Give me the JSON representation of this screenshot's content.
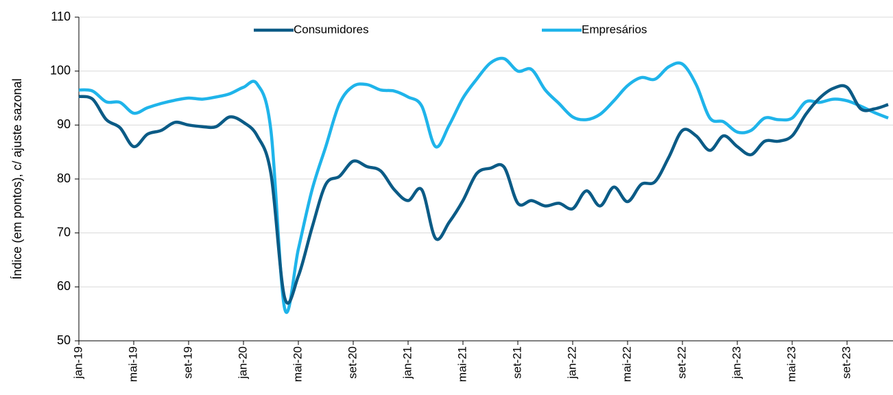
{
  "chart_data": {
    "type": "line",
    "y_label": "Índice (em pontos), c/ ajuste sazonal",
    "categories": [
      "jan-19",
      null,
      null,
      null,
      "mai-19",
      null,
      null,
      null,
      "set-19",
      null,
      null,
      null,
      "jan-20",
      null,
      null,
      null,
      "mai-20",
      null,
      null,
      null,
      "set-20",
      null,
      null,
      null,
      "jan-21",
      null,
      null,
      null,
      "mai-21",
      null,
      null,
      null,
      "set-21",
      null,
      null,
      null,
      "jan-22",
      null,
      null,
      null,
      "mai-22",
      null,
      null,
      null,
      "set-22",
      null,
      null,
      null,
      "jan-23",
      null,
      null,
      null,
      "mai-23",
      null,
      null,
      null,
      "set-23",
      null,
      null,
      null
    ],
    "series": [
      {
        "name": "Consumidores",
        "color": "#0b5b86",
        "values": [
          95.3,
          94.8,
          91,
          89.5,
          86,
          88.3,
          89,
          90.5,
          90,
          89.7,
          89.7,
          91.5,
          90.5,
          88,
          81,
          58,
          62,
          71,
          79,
          80.5,
          83.3,
          82.3,
          81.5,
          78,
          76,
          78,
          69,
          72,
          76,
          81,
          82,
          82.2,
          75.5,
          76,
          75,
          75.5,
          74.5,
          77.8,
          75,
          78.5,
          75.8,
          79,
          79.5,
          84,
          89,
          88,
          85.3,
          88,
          86,
          84.5,
          87,
          87,
          88,
          92,
          95,
          96.8,
          97,
          93,
          93,
          93.8
        ]
      },
      {
        "name": "Empresários",
        "color": "#1fb4ea",
        "values": [
          96.5,
          96.3,
          94.3,
          94.2,
          92.2,
          93.2,
          94,
          94.6,
          95,
          94.8,
          95.2,
          95.8,
          97,
          97.6,
          89,
          56,
          67,
          78,
          86,
          94,
          97.2,
          97.5,
          96.5,
          96.3,
          95.2,
          93.5,
          86,
          90,
          95,
          98.5,
          101.5,
          102.3,
          100,
          100.3,
          96.5,
          94,
          91.5,
          91,
          92,
          94.5,
          97.3,
          98.8,
          98.5,
          100.8,
          101.3,
          97.5,
          91.3,
          90.6,
          88.7,
          89,
          91.3,
          91,
          91.3,
          94.3,
          94.2,
          94.8,
          94.5,
          93.5,
          92.3,
          91.3
        ]
      }
    ],
    "ylim": [
      50,
      110
    ],
    "yticks": [
      50,
      60,
      70,
      80,
      90,
      100,
      110
    ],
    "grid": true,
    "legend": "top"
  }
}
